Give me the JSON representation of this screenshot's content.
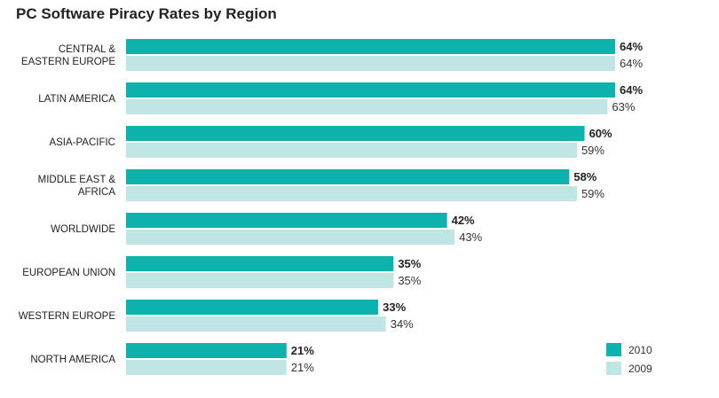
{
  "chart_data": {
    "type": "bar",
    "orientation": "horizontal",
    "title": "PC Software Piracy Rates by Region",
    "categories": [
      [
        "CENTRAL &",
        "EASTERN EUROPE"
      ],
      [
        "LATIN AMERICA"
      ],
      [
        "ASIA-PACIFIC"
      ],
      [
        "MIDDLE EAST &",
        "AFRICA"
      ],
      [
        "WORLDWIDE"
      ],
      [
        "EUROPEAN UNION"
      ],
      [
        "WESTERN EUROPE"
      ],
      [
        "NORTH AMERICA"
      ]
    ],
    "series": [
      {
        "name": "2010",
        "color": "#0eb2ac",
        "values": [
          64,
          64,
          60,
          58,
          42,
          35,
          33,
          21
        ],
        "labels": [
          "64%",
          "64%",
          "60%",
          "58%",
          "42%",
          "35%",
          "33%",
          "21%"
        ]
      },
      {
        "name": "2009",
        "color": "#bfe6e4",
        "values": [
          64,
          63,
          59,
          59,
          43,
          35,
          34,
          21
        ],
        "labels": [
          "64%",
          "63%",
          "59%",
          "59%",
          "43%",
          "35%",
          "34%",
          "21%"
        ]
      }
    ],
    "xlim": [
      0,
      64
    ],
    "grid": false,
    "legend_position": "bottom-right"
  }
}
